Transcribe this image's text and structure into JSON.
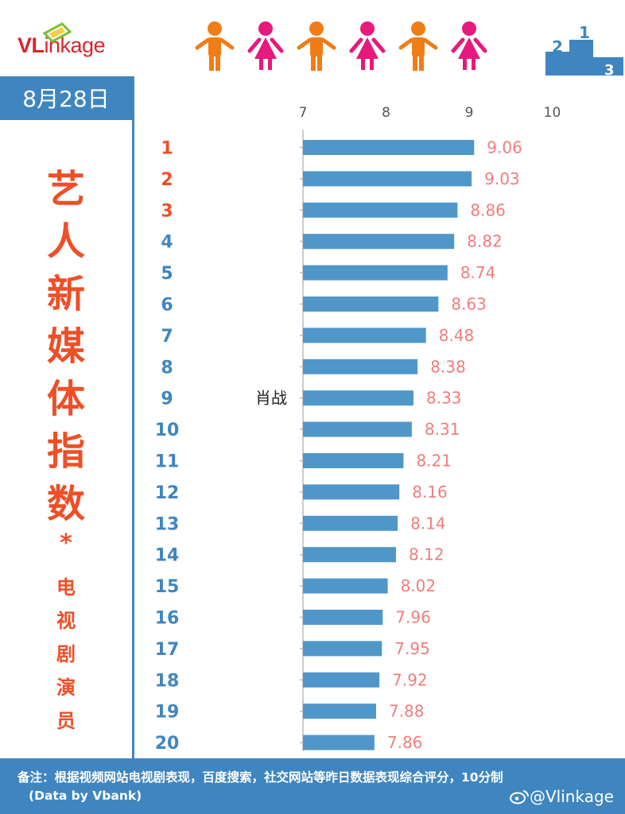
{
  "header": {
    "logo_text_a": "VL",
    "logo_text_b": "inkage",
    "people_icons": [
      "person-icon",
      "woman-icon",
      "person-icon",
      "woman-icon",
      "person-icon",
      "woman-icon"
    ],
    "podium_labels": [
      "2",
      "1",
      "3"
    ],
    "colors": {
      "orange": "#f07d16",
      "pink": "#e6197c",
      "blue": "#3f86c0",
      "red": "#ee4f27"
    }
  },
  "sidebar": {
    "date": "8月28日",
    "title_chars": [
      "艺",
      "人",
      "新",
      "媒",
      "体",
      "指",
      "数"
    ],
    "star": "*",
    "subtitle_chars": [
      "电",
      "视",
      "剧",
      "演",
      "员"
    ]
  },
  "chart_data": {
    "type": "bar",
    "orientation": "horizontal",
    "xlim": [
      7,
      10
    ],
    "x_ticks": [
      "7",
      "8",
      "9",
      "10"
    ],
    "categories": [
      "1",
      "2",
      "3",
      "4",
      "5",
      "6",
      "7",
      "8",
      "9",
      "10",
      "11",
      "12",
      "13",
      "14",
      "15",
      "16",
      "17",
      "18",
      "19",
      "20"
    ],
    "values": [
      9.06,
      9.03,
      8.86,
      8.82,
      8.74,
      8.63,
      8.48,
      8.38,
      8.33,
      8.31,
      8.21,
      8.16,
      8.14,
      8.12,
      8.02,
      7.96,
      7.95,
      7.92,
      7.88,
      7.86
    ],
    "value_labels": [
      "9.06",
      "9.03",
      "8.86",
      "8.82",
      "8.74",
      "8.63",
      "8.48",
      "8.38",
      "8.33",
      "8.31",
      "8.21",
      "8.16",
      "8.14",
      "8.12",
      "8.02",
      "7.96",
      "7.95",
      "7.92",
      "7.88",
      "7.86"
    ],
    "names": [
      "",
      "",
      "",
      "",
      "",
      "",
      "",
      "",
      "肖战",
      "",
      "",
      "",
      "",
      "",
      "",
      "",
      "",
      "",
      "",
      ""
    ],
    "bar_color": "#4f97c9",
    "label_color": "#f07d7d",
    "rank_colors": {
      "top3": "#ee4f27",
      "rest": "#3f86c0"
    }
  },
  "footer": {
    "note": "备注：根据视频网站电视剧表现，百度搜索，社交网站等昨日数据表现综合评分，10分制",
    "note2": "(Data by Vbank)",
    "weibo": "@Vlinkage"
  }
}
